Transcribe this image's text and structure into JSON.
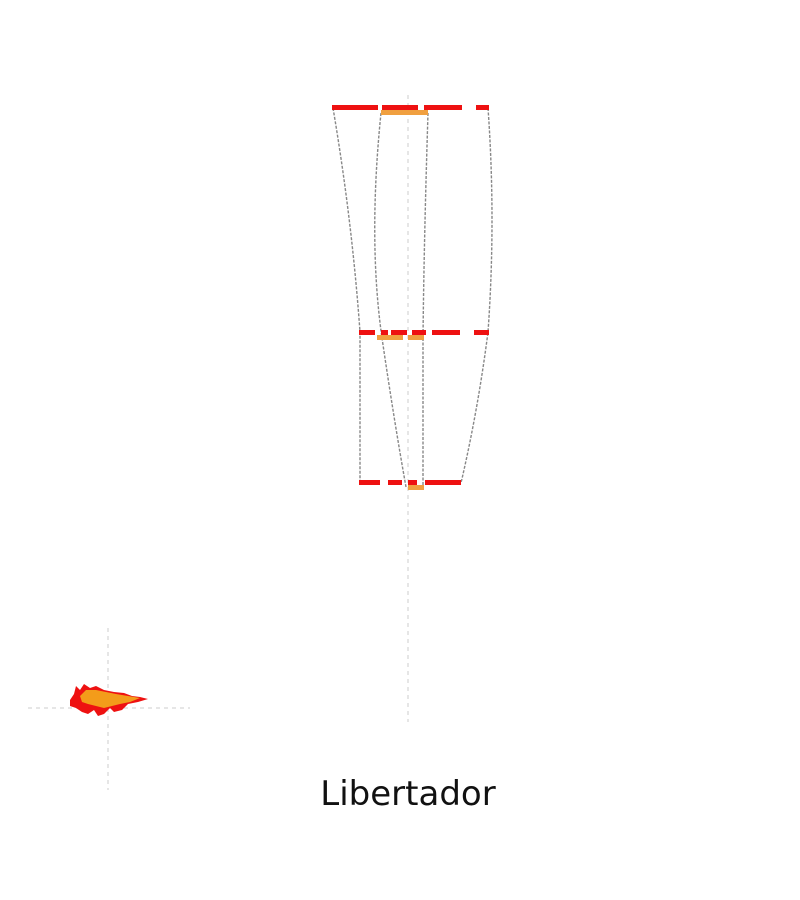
{
  "map": {
    "title": "Libertador",
    "colors": {
      "bar_primary": "#ee1111",
      "bar_secondary": "#f0a040",
      "connector": "#888888",
      "crosshair": "#cccccc",
      "inset_primary": "#ee1111",
      "inset_secondary": "#f39c1a"
    },
    "layers": [
      "bars",
      "connectors",
      "crosshair",
      "inset-shape"
    ]
  }
}
